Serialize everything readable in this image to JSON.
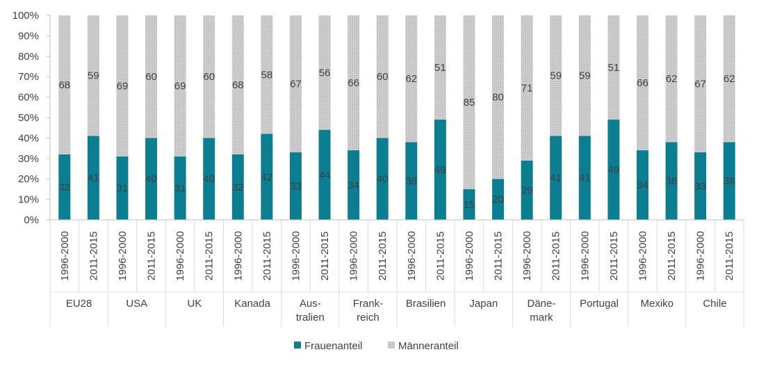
{
  "chart_data": {
    "type": "bar",
    "stacked": true,
    "percent_stacked": true,
    "y_ticks": [
      "0%",
      "10%",
      "20%",
      "30%",
      "40%",
      "50%",
      "60%",
      "70%",
      "80%",
      "90%",
      "100%"
    ],
    "ylim": [
      0,
      100
    ],
    "grid": false,
    "legend_position": "bottom",
    "groups": [
      {
        "label": [
          "EU28"
        ],
        "periods": [
          {
            "period": "1996-2000",
            "women": 32,
            "men": 68
          },
          {
            "period": "2011-2015",
            "women": 41,
            "men": 59
          }
        ]
      },
      {
        "label": [
          "USA"
        ],
        "periods": [
          {
            "period": "1996-2000",
            "women": 31,
            "men": 69
          },
          {
            "period": "2011-2015",
            "women": 40,
            "men": 60
          }
        ]
      },
      {
        "label": [
          "UK"
        ],
        "periods": [
          {
            "period": "1996-2000",
            "women": 31,
            "men": 69
          },
          {
            "period": "2011-2015",
            "women": 40,
            "men": 60
          }
        ]
      },
      {
        "label": [
          "Kanada"
        ],
        "periods": [
          {
            "period": "1996-2000",
            "women": 32,
            "men": 68
          },
          {
            "period": "2011-2015",
            "women": 42,
            "men": 58
          }
        ]
      },
      {
        "label": [
          "Aus-",
          "tralien"
        ],
        "periods": [
          {
            "period": "1996-2000",
            "women": 33,
            "men": 67
          },
          {
            "period": "2011-2015",
            "women": 44,
            "men": 56
          }
        ]
      },
      {
        "label": [
          "Frank-",
          "reich"
        ],
        "periods": [
          {
            "period": "1996-2000",
            "women": 34,
            "men": 66
          },
          {
            "period": "2011-2015",
            "women": 40,
            "men": 60
          }
        ]
      },
      {
        "label": [
          "Brasilien"
        ],
        "periods": [
          {
            "period": "1996-2000",
            "women": 38,
            "men": 62
          },
          {
            "period": "2011-2015",
            "women": 49,
            "men": 51
          }
        ]
      },
      {
        "label": [
          "Japan"
        ],
        "periods": [
          {
            "period": "1996-2000",
            "women": 15,
            "men": 85
          },
          {
            "period": "2011-2015",
            "women": 20,
            "men": 80
          }
        ]
      },
      {
        "label": [
          "Däne-",
          "mark"
        ],
        "periods": [
          {
            "period": "1996-2000",
            "women": 29,
            "men": 71
          },
          {
            "period": "2011-2015",
            "women": 41,
            "men": 59
          }
        ]
      },
      {
        "label": [
          "Portugal"
        ],
        "periods": [
          {
            "period": "1996-2000",
            "women": 41,
            "men": 59
          },
          {
            "period": "2011-2015",
            "women": 49,
            "men": 51
          }
        ]
      },
      {
        "label": [
          "Mexiko"
        ],
        "periods": [
          {
            "period": "1996-2000",
            "women": 34,
            "men": 66
          },
          {
            "period": "2011-2015",
            "women": 38,
            "men": 62
          }
        ]
      },
      {
        "label": [
          "Chile"
        ],
        "periods": [
          {
            "period": "1996-2000",
            "women": 33,
            "men": 67
          },
          {
            "period": "2011-2015",
            "women": 38,
            "men": 62
          }
        ]
      }
    ],
    "series": [
      {
        "key": "women",
        "name": "Frauenanteil",
        "color": "#0b7e92"
      },
      {
        "key": "men",
        "name": "Männeranteil",
        "color": "#c3c3c3"
      }
    ]
  }
}
